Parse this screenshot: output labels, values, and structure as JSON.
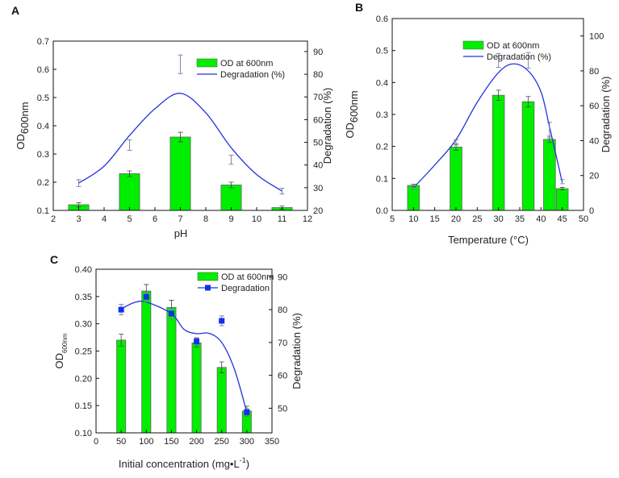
{
  "chart_data": [
    {
      "type": "bar+line",
      "panel_label": "A",
      "xlabel": "pH",
      "ylabel_main": "OD",
      "ylabel_sub": "600nm",
      "y2label": "Degradation (%)",
      "xlim": [
        2,
        12
      ],
      "ylim": [
        0.1,
        0.7
      ],
      "y2lim": [
        20,
        94.6
      ],
      "xticks": [
        "2",
        "3",
        "4",
        "5",
        "6",
        "7",
        "8",
        "9",
        "10",
        "11",
        "12"
      ],
      "yticks": [
        "0.1",
        "0.2",
        "0.3",
        "0.4",
        "0.5",
        "0.6",
        "0.7"
      ],
      "y2ticks": [
        "20",
        "30",
        "40",
        "50",
        "60",
        "70",
        "80",
        "90"
      ],
      "legend": [
        "OD at 600nm",
        "Degradation (%)"
      ],
      "legend_marker": false,
      "od": {
        "x": [
          3,
          5,
          7,
          9,
          11
        ],
        "values": [
          0.12,
          0.23,
          0.36,
          0.19,
          0.11
        ],
        "err": [
          0.007,
          0.01,
          0.017,
          0.01,
          0.005
        ]
      },
      "degradation": {
        "points_x": [
          3,
          5,
          7,
          9,
          11
        ],
        "points_y": [
          32,
          48.8,
          84.4,
          42.3,
          28.5
        ],
        "points_err": [
          1.5,
          2.3,
          4.1,
          2,
          1.3
        ],
        "curve_x": [
          3,
          4,
          5,
          6,
          7,
          8,
          9,
          10,
          11
        ],
        "curve_y": [
          32,
          39.5,
          53,
          64.8,
          71.6,
          63,
          47.6,
          35.8,
          28.5
        ]
      },
      "colors": {
        "bar": "#00ee00",
        "line": "#2233dd"
      }
    },
    {
      "type": "bar+line",
      "panel_label": "B",
      "xlabel": "Temperature (°C)",
      "ylabel_main": "OD",
      "ylabel_sub": "600nm",
      "y2label": "Degradation (%)",
      "xlim": [
        5,
        50
      ],
      "ylim": [
        0,
        0.6
      ],
      "y2lim": [
        0,
        110
      ],
      "xticks": [
        "5",
        "10",
        "15",
        "20",
        "25",
        "30",
        "35",
        "40",
        "45",
        "50"
      ],
      "yticks": [
        "0.0",
        "0.1",
        "0.2",
        "0.3",
        "0.4",
        "0.5",
        "0.6"
      ],
      "y2ticks": [
        "0",
        "20",
        "40",
        "60",
        "80",
        "100"
      ],
      "legend": [
        "OD at 600nm",
        "Degradation (%)"
      ],
      "legend_marker": false,
      "od": {
        "x": [
          10,
          20,
          30,
          37,
          42,
          45
        ],
        "values": [
          0.078,
          0.198,
          0.36,
          0.34,
          0.222,
          0.068
        ],
        "err": [
          0.004,
          0.01,
          0.016,
          0.016,
          0.01,
          0.004
        ]
      },
      "degradation": {
        "points_x": [
          10,
          20,
          30,
          37,
          42,
          45
        ],
        "points_y": [
          13,
          39,
          86,
          86,
          46,
          16.5
        ],
        "points_err": [
          1,
          1.5,
          4,
          4.5,
          4.5,
          1.2
        ],
        "curve_x": [
          10,
          15,
          20,
          25,
          30,
          33.5,
          37,
          40,
          42,
          45
        ],
        "curve_y": [
          13,
          26,
          40.5,
          62,
          79,
          84,
          80,
          68,
          48,
          16
        ]
      },
      "colors": {
        "bar": "#00ee00",
        "line": "#2233dd"
      }
    },
    {
      "type": "bar+line",
      "panel_label": "C",
      "xlabel": "Initial concentration (mg•L",
      "xlabel_sup": "-1",
      "xlabel_end": ")",
      "ylabel_main": "OD",
      "ylabel_sub": "600nm",
      "y2label": "Degradation (%)",
      "xlim": [
        0,
        350
      ],
      "ylim": [
        0.1,
        0.4
      ],
      "y2lim": [
        42.5,
        92.3
      ],
      "xticks": [
        "0",
        "50",
        "100",
        "150",
        "200",
        "250",
        "300",
        "350"
      ],
      "yticks": [
        "0.10",
        "0.15",
        "0.20",
        "0.25",
        "0.30",
        "0.35",
        "0.40"
      ],
      "y2ticks": [
        "50",
        "60",
        "70",
        "80",
        "90"
      ],
      "legend": [
        "OD at 600nm",
        "Degradation"
      ],
      "legend_marker": true,
      "od": {
        "x": [
          50,
          100,
          150,
          200,
          250,
          300
        ],
        "values": [
          0.27,
          0.36,
          0.33,
          0.265,
          0.22,
          0.14
        ],
        "err": [
          0.011,
          0.012,
          0.013,
          0.008,
          0.01,
          0.009
        ]
      },
      "degradation": {
        "points_x": [
          50,
          100,
          150,
          200,
          250,
          300
        ],
        "points_y": [
          80.0,
          83.9,
          78.8,
          70.3,
          76.6,
          48.8
        ],
        "points_err": [
          1.6,
          1.5,
          1.6,
          1.2,
          1.5,
          1.0
        ],
        "curve_x": [
          50,
          75,
          100,
          150,
          175,
          200,
          225,
          250,
          275,
          300
        ],
        "curve_y": [
          80.2,
          82.1,
          82.3,
          78.8,
          74,
          72.7,
          72.8,
          70,
          62,
          48.8
        ]
      },
      "colors": {
        "bar": "#00ee00",
        "line": "#2233dd"
      }
    }
  ]
}
